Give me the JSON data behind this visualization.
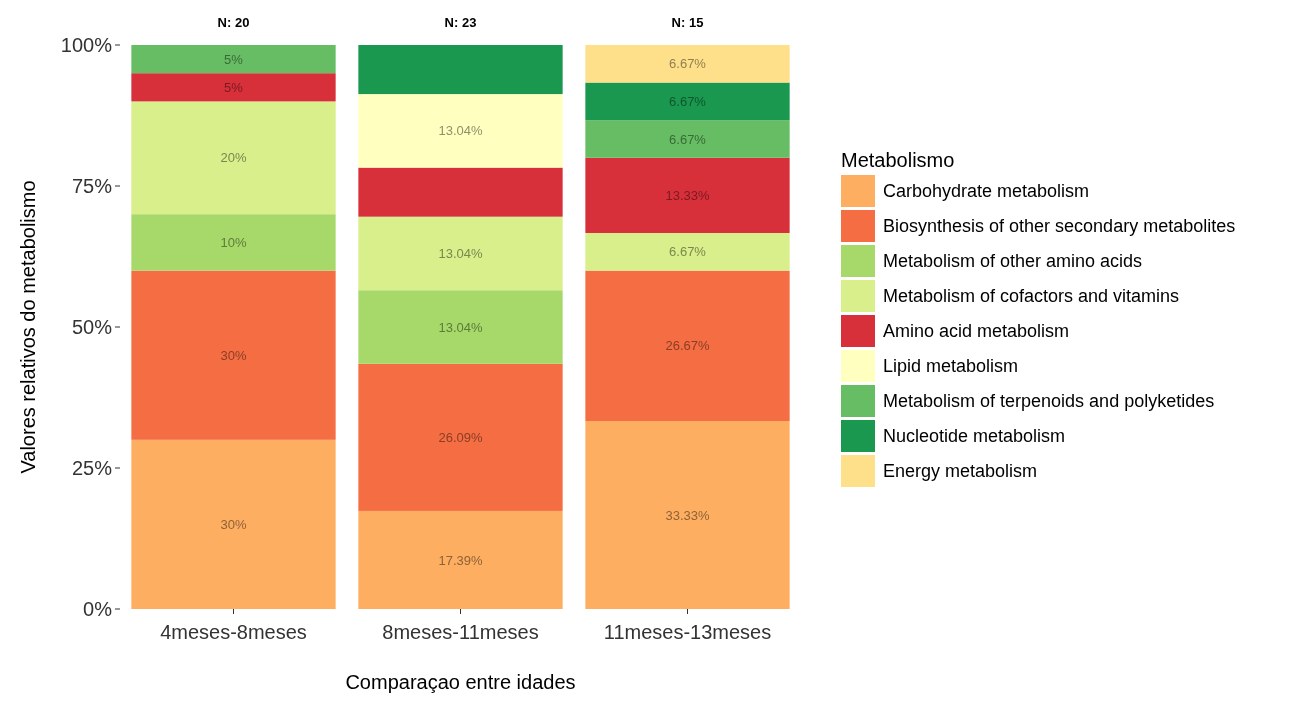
{
  "chart_data": {
    "type": "bar",
    "stacked": true,
    "xlabel": "Comparaçao entre idades",
    "ylabel": "Valores relativos do metabolismo",
    "legend_title": "Metabolismo",
    "legend": "right",
    "grid": false,
    "categories": [
      "4meses-8meses",
      "8meses-11meses",
      "11meses-13meses"
    ],
    "ylim": [
      0,
      100
    ],
    "yticks": [
      {
        "value": 0,
        "label": "0%"
      },
      {
        "value": 25,
        "label": "25%"
      },
      {
        "value": 50,
        "label": "50%"
      },
      {
        "value": 75,
        "label": "75%"
      },
      {
        "value": 100,
        "label": "100%"
      }
    ],
    "annotations": [
      "N: 20",
      "N: 23",
      "N: 15"
    ],
    "series": [
      {
        "name": "Carbohydrate metabolism",
        "color": "#fdae61",
        "values": [
          30,
          17.39,
          33.33
        ],
        "value_labels": [
          "30%",
          "17.39%",
          "33.33%"
        ]
      },
      {
        "name": "Biosynthesis of other secondary metabolites",
        "color": "#f46d43",
        "values": [
          30,
          26.09,
          26.67
        ],
        "value_labels": [
          "30%",
          "26.09%",
          "26.67%"
        ]
      },
      {
        "name": "Metabolism of other amino acids",
        "color": "#a6d96a",
        "values": [
          10,
          13.04,
          null
        ],
        "value_labels": [
          "10%",
          "13.04%",
          null
        ]
      },
      {
        "name": "Metabolism of cofactors and vitamins",
        "color": "#d9ef8b",
        "values": [
          20,
          13.04,
          6.67
        ],
        "value_labels": [
          "20%",
          "13.04%",
          "6.67%"
        ]
      },
      {
        "name": "Amino acid metabolism",
        "color": "#d7303a",
        "values": [
          5,
          8.7,
          13.33
        ],
        "value_labels": [
          "5%",
          null,
          "13.33%"
        ]
      },
      {
        "name": "Lipid metabolism",
        "color": "#ffffbf",
        "values": [
          null,
          13.04,
          null
        ],
        "value_labels": [
          null,
          "13.04%",
          null
        ]
      },
      {
        "name": "Metabolism of terpenoids and polyketides",
        "color": "#66bd63",
        "values": [
          5,
          null,
          6.67
        ],
        "value_labels": [
          "5%",
          null,
          "6.67%"
        ]
      },
      {
        "name": "Nucleotide metabolism",
        "color": "#1a9850",
        "values": [
          null,
          8.7,
          6.67
        ],
        "value_labels": [
          null,
          null,
          "6.67%"
        ]
      },
      {
        "name": "Energy metabolism",
        "color": "#fee08b",
        "values": [
          null,
          null,
          6.67
        ],
        "value_labels": [
          null,
          null,
          "6.67%"
        ]
      }
    ]
  }
}
